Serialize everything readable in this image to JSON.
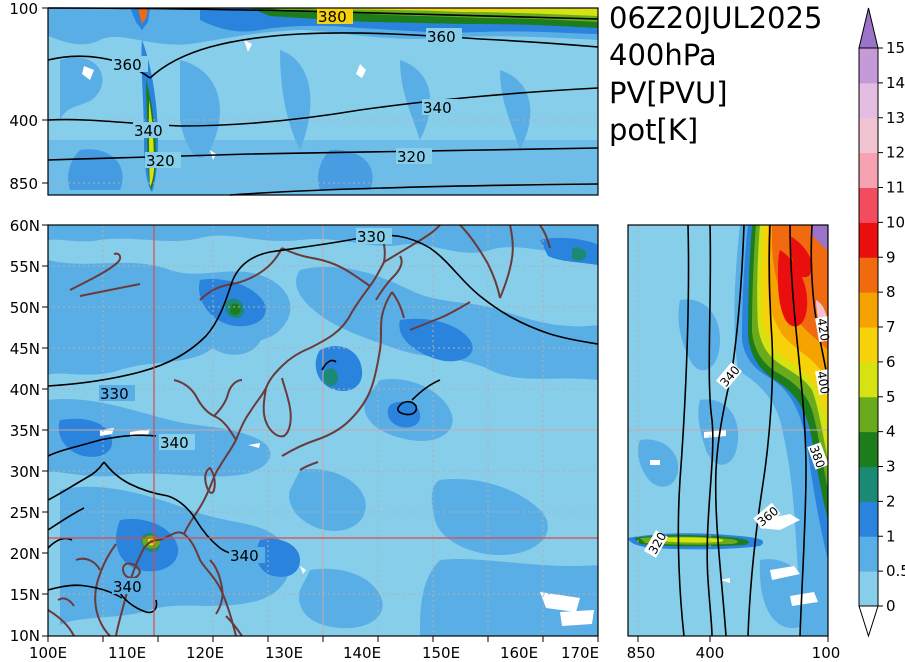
{
  "title": {
    "line1": "06Z20JUL2025",
    "line2": "400hPa",
    "line3": "PV[PVU]",
    "line4": "pot[K]"
  },
  "top_panel": {
    "y_ticks": [
      "100",
      "400",
      "850"
    ],
    "contour_labels": [
      "380",
      "360",
      "360",
      "340",
      "340",
      "320",
      "320"
    ]
  },
  "map_panel": {
    "y_ticks": [
      "60N",
      "55N",
      "50N",
      "45N",
      "40N",
      "35N",
      "30N",
      "25N",
      "20N",
      "15N",
      "10N"
    ],
    "x_ticks": [
      "100E",
      "110E",
      "120E",
      "130E",
      "140E",
      "150E",
      "160E",
      "170E"
    ],
    "contour_labels": [
      "330",
      "330",
      "340",
      "340",
      "340"
    ]
  },
  "right_panel": {
    "x_ticks": [
      "850",
      "400",
      "100"
    ],
    "contour_labels": [
      "320",
      "340",
      "360",
      "380",
      "400",
      "420"
    ]
  },
  "colorbar": {
    "levels": [
      "0",
      "0.5",
      "1",
      "2",
      "3",
      "4",
      "5",
      "6",
      "7",
      "8",
      "9",
      "10",
      "11",
      "12",
      "13",
      "14",
      "15"
    ],
    "colors": [
      "#87ceeb",
      "#5aaee6",
      "#2a83dc",
      "#1b8a75",
      "#1d7d1d",
      "#6aab1e",
      "#d6e212",
      "#f7d20b",
      "#f5a300",
      "#f26a10",
      "#ea0e0e",
      "#f24c5e",
      "#f7a2b0",
      "#f2c4d2",
      "#e4bde2",
      "#c49ad8",
      "#9a74c8"
    ]
  },
  "colors": {
    "water_pv": "#87ceeb",
    "coast": "#6b3a3a",
    "crosshair": "#e04848",
    "grid": "#b0b0b0"
  }
}
